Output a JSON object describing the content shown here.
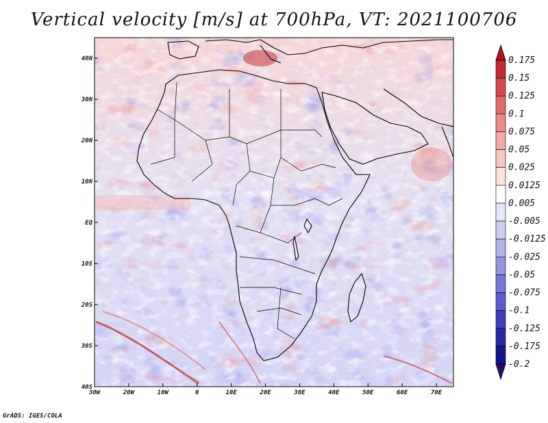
{
  "title": "Vertical velocity [m/s] at 700hPa, VT: 2021100706",
  "footer": "GrADS: IGES/COLA",
  "map": {
    "projection": "latlon",
    "lon_range": [
      -30,
      75
    ],
    "lat_range": [
      -40,
      45
    ],
    "lon_ticks": [
      {
        "value": -30,
        "label": "30W"
      },
      {
        "value": -20,
        "label": "20W"
      },
      {
        "value": -10,
        "label": "10W"
      },
      {
        "value": 0,
        "label": "0"
      },
      {
        "value": 10,
        "label": "10E"
      },
      {
        "value": 20,
        "label": "20E"
      },
      {
        "value": 30,
        "label": "30E"
      },
      {
        "value": 40,
        "label": "40E"
      },
      {
        "value": 50,
        "label": "50E"
      },
      {
        "value": 60,
        "label": "60E"
      },
      {
        "value": 70,
        "label": "70E"
      }
    ],
    "lat_ticks": [
      {
        "value": 40,
        "label": "40N"
      },
      {
        "value": 30,
        "label": "30N"
      },
      {
        "value": 20,
        "label": "20N"
      },
      {
        "value": 10,
        "label": "10N"
      },
      {
        "value": 0,
        "label": "EQ"
      },
      {
        "value": -10,
        "label": "10S"
      },
      {
        "value": -20,
        "label": "20S"
      },
      {
        "value": -30,
        "label": "30S"
      },
      {
        "value": -40,
        "label": "40S"
      }
    ]
  },
  "colorbar": {
    "labels": [
      "0.175",
      "0.15",
      "0.125",
      "0.1",
      "0.075",
      "0.05",
      "0.025",
      "0.0125",
      "0.005",
      "-0.005",
      "-0.0125",
      "-0.025",
      "-0.05",
      "-0.075",
      "-0.1",
      "-0.125",
      "-0.175",
      "-0.2"
    ],
    "colors": [
      "#b01218",
      "#c42a2e",
      "#d84a4a",
      "#e46a66",
      "#ec8a84",
      "#f2aaa4",
      "#f7c6c0",
      "#fbe0dc",
      "#ffffff",
      "#e6e6fa",
      "#ccccf2",
      "#b0b0ea",
      "#9494e0",
      "#7878d6",
      "#5c5ccc",
      "#4040bc",
      "#2828a8",
      "#14148c",
      "#2a0a6a"
    ]
  }
}
